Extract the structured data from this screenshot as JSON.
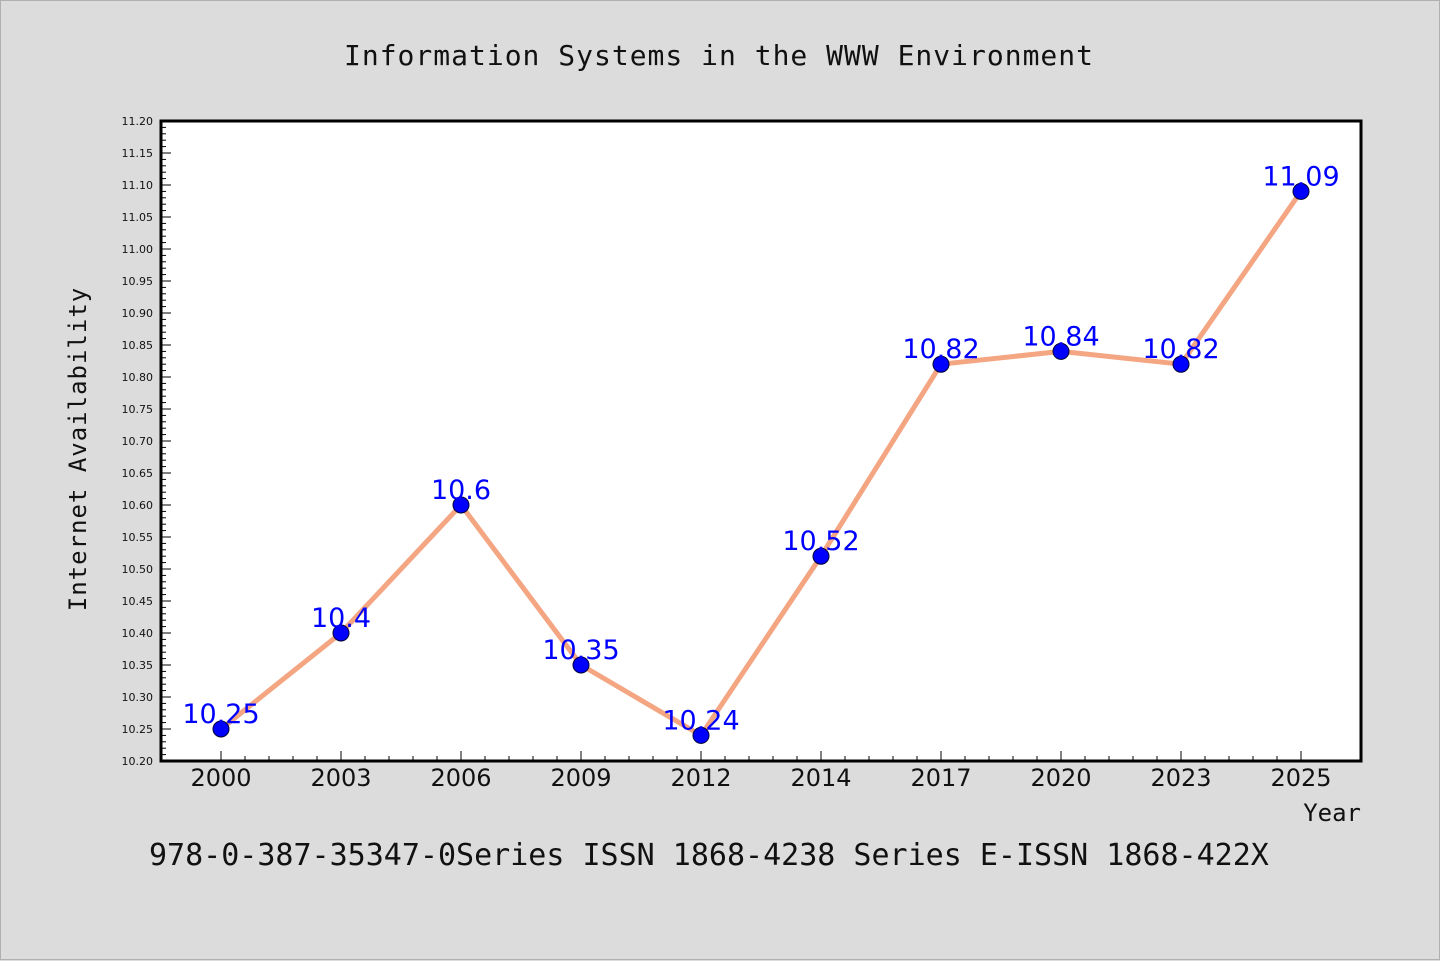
{
  "chart_data": {
    "type": "line",
    "title": "Information Systems in the WWW Environment",
    "xlabel": "Year",
    "ylabel": "Internet Availability",
    "footer": "978-0-387-35347-0Series ISSN 1868-4238 Series E-ISSN 1868-422X",
    "categories": [
      "2000",
      "2003",
      "2006",
      "2009",
      "2012",
      "2014",
      "2017",
      "2020",
      "2023",
      "2025"
    ],
    "values": [
      10.25,
      10.4,
      10.6,
      10.35,
      10.24,
      10.52,
      10.82,
      10.84,
      10.82,
      11.09
    ],
    "data_labels": [
      "10.25",
      "10.4",
      "10.6",
      "10.35",
      "10.24",
      "10.52",
      "10.82",
      "10.84",
      "10.82",
      "11.09"
    ],
    "ylim": [
      10.2,
      11.2
    ],
    "yticks": [
      "10.20",
      "10.25",
      "10.30",
      "10.35",
      "10.40",
      "10.45",
      "10.50",
      "10.55",
      "10.60",
      "10.65",
      "10.70",
      "10.75",
      "10.80",
      "10.85",
      "10.90",
      "10.95",
      "11.00",
      "11.05",
      "11.10",
      "11.15",
      "11.20"
    ],
    "grid": false,
    "colors": {
      "line": "#f4a582",
      "marker": "#0000ff",
      "label": "#0000ff",
      "background": "#dcdcdc",
      "plot_bg": "#ffffff"
    }
  }
}
